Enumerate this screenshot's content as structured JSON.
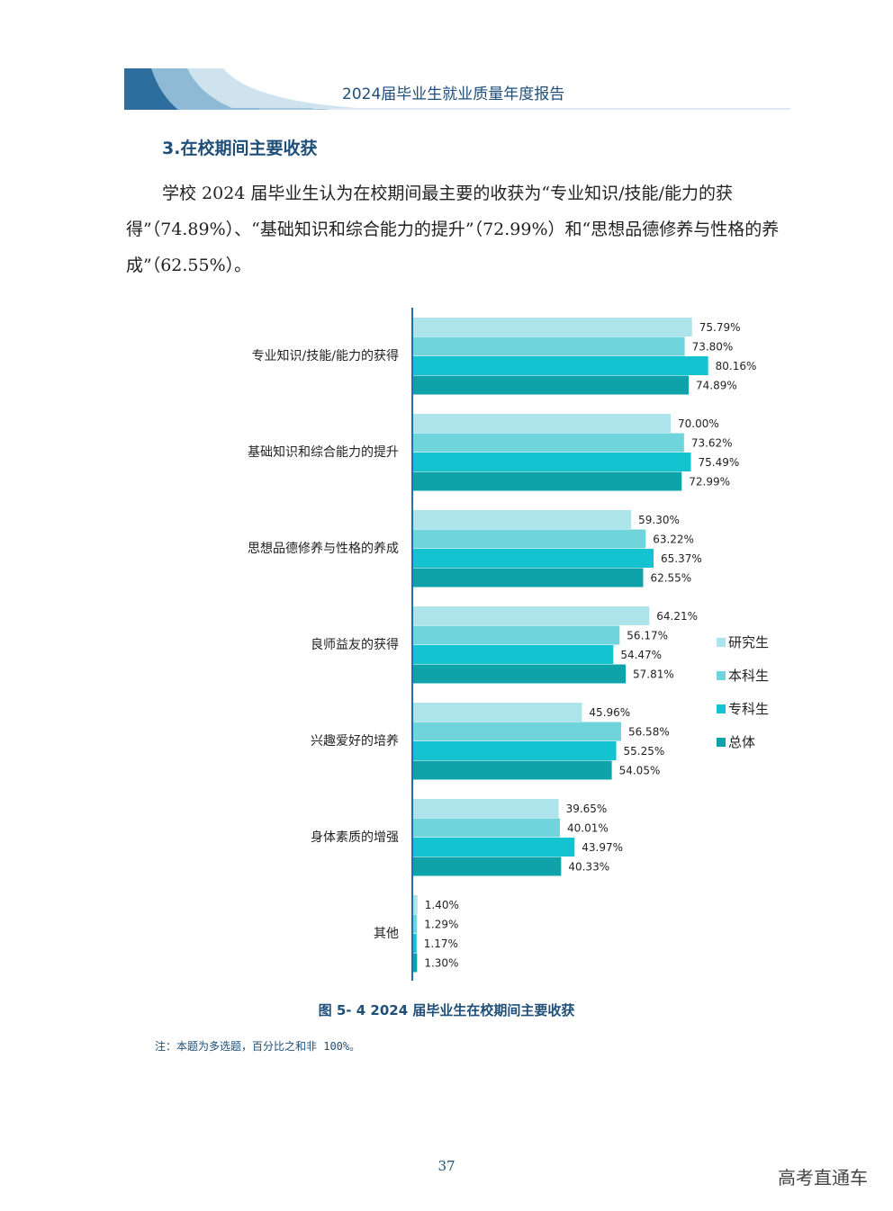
{
  "header": {
    "title": "2024届毕业生就业质量年度报告"
  },
  "section": {
    "title": "3.在校期间主要收获"
  },
  "paragraph": "学校 2024 届毕业生认为在校期间最主要的收获为“专业知识/技能/能力的获得”（74.89%）、“基础知识和综合能力的提升”（72.99%）和“思想品德修养与性格的养成”（62.55%）。",
  "chart_data": {
    "type": "bar",
    "orientation": "horizontal",
    "title": "图 5- 4  2024 届毕业生在校期间主要收获",
    "categories": [
      "专业知识/技能/能力的获得",
      "基础知识和综合能力的提升",
      "思想品德修养与性格的养成",
      "良师益友的获得",
      "兴趣爱好的培养",
      "身体素质的增强",
      "其他"
    ],
    "series": [
      {
        "name": "研究生",
        "color": "#ade3ea",
        "values": [
          75.79,
          70.0,
          59.3,
          64.21,
          45.96,
          39.65,
          1.4
        ]
      },
      {
        "name": "本科生",
        "color": "#6fd4dc",
        "values": [
          73.8,
          73.62,
          63.22,
          56.17,
          56.58,
          40.01,
          1.29
        ]
      },
      {
        "name": "专科生",
        "color": "#14c3d0",
        "values": [
          80.16,
          75.49,
          65.37,
          54.47,
          55.25,
          43.97,
          1.17
        ]
      },
      {
        "name": "总体",
        "color": "#0ea3a8",
        "values": [
          74.89,
          72.99,
          62.55,
          57.81,
          54.05,
          40.33,
          1.3
        ]
      }
    ],
    "unit": "%",
    "legend_position": "right",
    "xlim": [
      0,
      100
    ]
  },
  "caption": "图 5- 4  2024 届毕业生在校期间主要收获",
  "note": "注：本题为多选题，百分比之和非 100%。",
  "page_number": "37",
  "watermark": "高考直通车"
}
